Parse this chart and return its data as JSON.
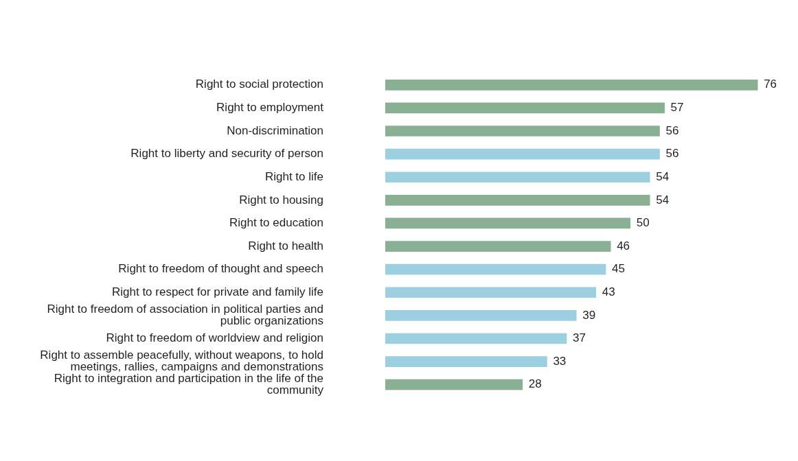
{
  "chart_data": {
    "type": "bar",
    "orientation": "horizontal",
    "data_labels": true,
    "categories": [
      "Right to social protection",
      "Right to employment",
      "Non-discrimination",
      "Right to liberty and security of person",
      "Right to life",
      "Right to housing",
      "Right to education",
      "Right to health",
      "Right to freedom of thought and speech",
      "Right to respect for private and family life",
      "Right to freedom of association in political parties and public organizations",
      "Right to freedom of worldview and religion",
      "Right to assemble peacefully, without weapons, to hold meetings, rallies, campaigns and demonstrations",
      "Right to integration and participation in the life of the community"
    ],
    "values": [
      76,
      57,
      56,
      56,
      54,
      54,
      50,
      46,
      45,
      43,
      39,
      37,
      33,
      28
    ],
    "colors": [
      "#8ab094",
      "#8ab094",
      "#8ab094",
      "#9ccfe0",
      "#9ccfe0",
      "#8ab094",
      "#8ab094",
      "#8ab094",
      "#9ccfe0",
      "#9ccfe0",
      "#9ccfe0",
      "#9ccfe0",
      "#9ccfe0",
      "#8ab094"
    ]
  }
}
